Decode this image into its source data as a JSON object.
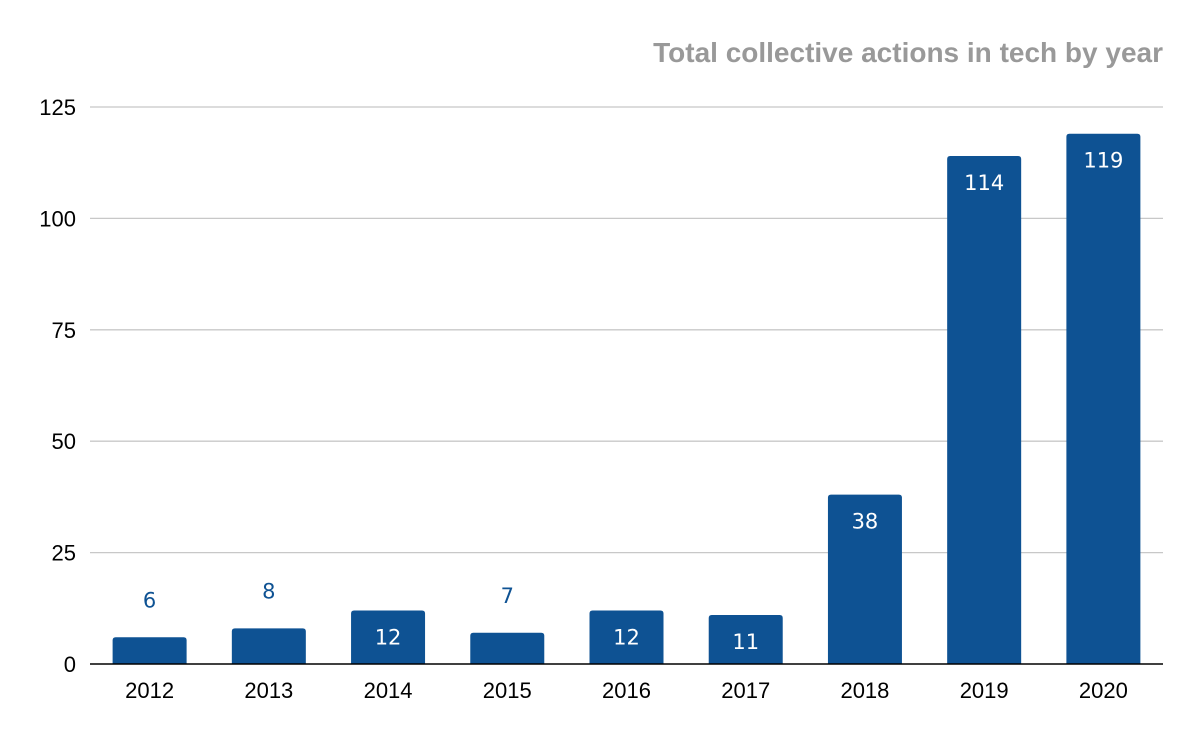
{
  "chart_data": {
    "type": "bar",
    "title": "Total collective actions in tech by year",
    "xlabel": "",
    "ylabel": "",
    "categories": [
      "2012",
      "2013",
      "2014",
      "2015",
      "2016",
      "2017",
      "2018",
      "2019",
      "2020"
    ],
    "values": [
      6,
      8,
      12,
      7,
      12,
      11,
      38,
      114,
      119
    ],
    "value_labels": [
      "6",
      "8",
      "12",
      "7",
      "12",
      "11",
      "38",
      "114",
      "119"
    ],
    "ylim": [
      0,
      125
    ],
    "yticks": [
      0,
      25,
      50,
      75,
      100,
      125
    ],
    "ytick_labels": [
      "0",
      "25",
      "50",
      "75",
      "100",
      "125"
    ],
    "grid": true,
    "legend": "none"
  },
  "colors": {
    "bar": "#0e5293",
    "label_inside": "#ffffff",
    "label_outside": "#0e5293",
    "title": "#999999",
    "grid": "#c8c8c8",
    "axis": "#000000"
  }
}
